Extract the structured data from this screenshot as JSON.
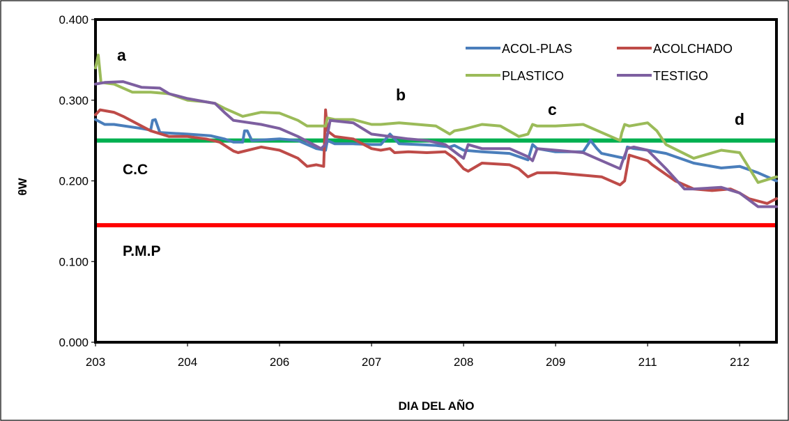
{
  "chart_data": {
    "type": "line",
    "title": "",
    "xlabel": "DIA DEL AÑO",
    "ylabel": "θW",
    "ylim": [
      0.0,
      0.4
    ],
    "yticks": [
      "0.000",
      "0.100",
      "0.200",
      "0.300",
      "0.400"
    ],
    "xticks": [
      "203",
      "204",
      "206",
      "207",
      "208",
      "209",
      "211",
      "212"
    ],
    "grid": false,
    "legend_position": "top-right",
    "reference_lines": [
      {
        "name": "C.C",
        "value": 0.25,
        "color": "#00B050"
      },
      {
        "name": "P.M.P",
        "value": 0.145,
        "color": "#FF0000"
      }
    ],
    "annotations": [
      "a",
      "b",
      "c",
      "d"
    ],
    "series": [
      {
        "name": "ACOL-PLAS",
        "color": "#4A7EBB",
        "x": [
          0,
          0.1,
          0.2,
          0.5,
          0.6,
          0.62,
          0.65,
          0.7,
          1,
          1.25,
          1.4,
          1.5,
          1.6,
          1.62,
          1.65,
          1.7,
          2,
          2.2,
          2.4,
          2.5,
          2.52,
          2.6,
          2.8,
          3,
          3.1,
          3.2,
          3.25,
          3.3,
          3.5,
          3.7,
          3.85,
          3.9,
          4,
          4.2,
          4.5,
          4.7,
          4.75,
          4.8,
          5,
          5.3,
          5.38,
          5.45,
          5.5,
          5.75,
          5.78,
          5.85,
          6,
          6.2,
          6.5,
          6.8,
          7,
          7.2,
          7.4
        ],
        "y": [
          0.276,
          0.27,
          0.27,
          0.265,
          0.263,
          0.275,
          0.276,
          0.26,
          0.258,
          0.256,
          0.252,
          0.248,
          0.248,
          0.262,
          0.262,
          0.25,
          0.252,
          0.25,
          0.24,
          0.238,
          0.25,
          0.246,
          0.246,
          0.245,
          0.245,
          0.258,
          0.252,
          0.246,
          0.245,
          0.244,
          0.242,
          0.244,
          0.238,
          0.236,
          0.234,
          0.226,
          0.245,
          0.24,
          0.236,
          0.236,
          0.25,
          0.24,
          0.234,
          0.228,
          0.242,
          0.24,
          0.238,
          0.234,
          0.222,
          0.216,
          0.218,
          0.21,
          0.2
        ]
      },
      {
        "name": "ACOLCHADO",
        "color": "#BE4B48",
        "x": [
          0,
          0.05,
          0.2,
          0.3,
          0.5,
          0.6,
          0.8,
          1,
          1.2,
          1.35,
          1.5,
          1.55,
          1.8,
          2,
          2.2,
          2.3,
          2.4,
          2.48,
          2.5,
          2.52,
          2.6,
          2.8,
          3,
          3.1,
          3.2,
          3.25,
          3.4,
          3.6,
          3.8,
          3.9,
          4,
          4.05,
          4.2,
          4.5,
          4.6,
          4.7,
          4.8,
          5,
          5.5,
          5.7,
          5.75,
          5.8,
          6,
          6.05,
          6.3,
          6.5,
          6.7,
          6.9,
          7,
          7.1,
          7.3,
          7.4
        ],
        "y": [
          0.282,
          0.288,
          0.285,
          0.28,
          0.268,
          0.262,
          0.255,
          0.255,
          0.252,
          0.248,
          0.237,
          0.235,
          0.242,
          0.238,
          0.228,
          0.218,
          0.22,
          0.218,
          0.288,
          0.262,
          0.255,
          0.252,
          0.24,
          0.238,
          0.24,
          0.235,
          0.236,
          0.235,
          0.236,
          0.228,
          0.215,
          0.212,
          0.222,
          0.22,
          0.215,
          0.205,
          0.21,
          0.21,
          0.205,
          0.195,
          0.2,
          0.232,
          0.225,
          0.22,
          0.2,
          0.19,
          0.188,
          0.19,
          0.185,
          0.178,
          0.172,
          0.178
        ]
      },
      {
        "name": "PLASTICO",
        "color": "#9BBB59",
        "x": [
          0,
          0.03,
          0.06,
          0.2,
          0.4,
          0.6,
          0.8,
          1,
          1.2,
          1.3,
          1.4,
          1.5,
          1.6,
          1.8,
          2,
          2.2,
          2.3,
          2.45,
          2.5,
          2.52,
          2.6,
          2.8,
          3,
          3.1,
          3.3,
          3.5,
          3.7,
          3.85,
          3.9,
          4,
          4.2,
          4.4,
          4.6,
          4.7,
          4.75,
          4.8,
          5,
          5.3,
          5.5,
          5.7,
          5.72,
          5.75,
          5.8,
          6,
          6.1,
          6.2,
          6.5,
          6.8,
          7,
          7.2,
          7.4
        ],
        "y": [
          0.34,
          0.356,
          0.322,
          0.32,
          0.31,
          0.31,
          0.308,
          0.3,
          0.298,
          0.296,
          0.29,
          0.285,
          0.28,
          0.285,
          0.284,
          0.275,
          0.268,
          0.268,
          0.268,
          0.278,
          0.276,
          0.276,
          0.27,
          0.27,
          0.272,
          0.27,
          0.268,
          0.258,
          0.262,
          0.264,
          0.27,
          0.268,
          0.255,
          0.258,
          0.27,
          0.268,
          0.268,
          0.27,
          0.26,
          0.25,
          0.26,
          0.27,
          0.268,
          0.272,
          0.262,
          0.245,
          0.228,
          0.238,
          0.235,
          0.198,
          0.205
        ]
      },
      {
        "name": "TESTIGO",
        "color": "#7D5FA0",
        "x": [
          0,
          0.1,
          0.3,
          0.5,
          0.7,
          0.8,
          1,
          1.2,
          1.3,
          1.4,
          1.5,
          1.8,
          2,
          2.2,
          2.45,
          2.5,
          2.55,
          2.8,
          3,
          3.2,
          3.4,
          3.6,
          3.8,
          3.95,
          4,
          4.05,
          4.2,
          4.5,
          4.7,
          4.75,
          4.8,
          5,
          5.3,
          5.5,
          5.7,
          5.72,
          5.78,
          5.85,
          6,
          6.2,
          6.4,
          6.5,
          6.8,
          7,
          7.2,
          7.4
        ],
        "y": [
          0.32,
          0.322,
          0.323,
          0.316,
          0.315,
          0.308,
          0.302,
          0.298,
          0.296,
          0.285,
          0.275,
          0.27,
          0.265,
          0.255,
          0.24,
          0.245,
          0.275,
          0.272,
          0.258,
          0.255,
          0.252,
          0.25,
          0.245,
          0.232,
          0.228,
          0.245,
          0.24,
          0.24,
          0.23,
          0.225,
          0.24,
          0.238,
          0.235,
          0.225,
          0.215,
          0.222,
          0.24,
          0.242,
          0.238,
          0.215,
          0.19,
          0.19,
          0.192,
          0.185,
          0.168,
          0.168
        ]
      }
    ]
  }
}
